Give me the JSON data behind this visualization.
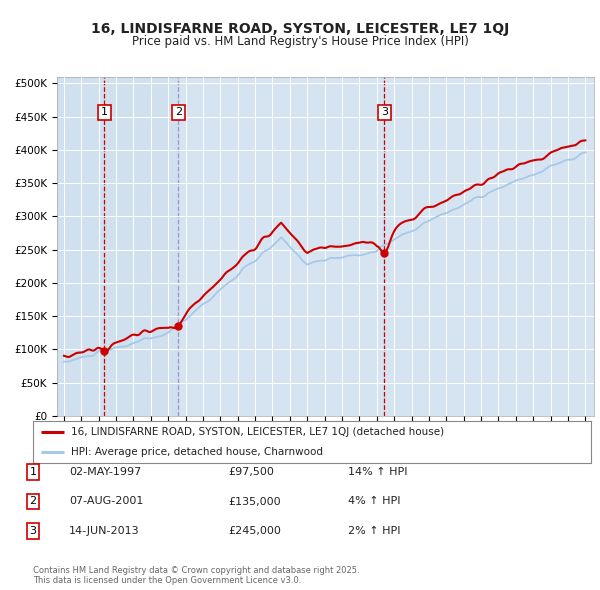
{
  "title_line1": "16, LINDISFARNE ROAD, SYSTON, LEICESTER, LE7 1QJ",
  "title_line2": "Price paid vs. HM Land Registry's House Price Index (HPI)",
  "bg_color": "#dce9f5",
  "grid_color": "#ffffff",
  "red_line_color": "#cc0000",
  "blue_line_color": "#a8c8e8",
  "sale_marker_color": "#cc0000",
  "sales": [
    {
      "date_year": 1997.33,
      "price": 97500,
      "label": "1",
      "hpi_pct": "14%",
      "date_str": "02-MAY-1997"
    },
    {
      "date_year": 2001.58,
      "price": 135000,
      "label": "2",
      "hpi_pct": "4%",
      "date_str": "07-AUG-2001"
    },
    {
      "date_year": 2013.44,
      "price": 245000,
      "label": "3",
      "hpi_pct": "2%",
      "date_str": "14-JUN-2013"
    }
  ],
  "ylim": [
    0,
    510000
  ],
  "xlim": [
    1994.6,
    2025.5
  ],
  "yticks": [
    0,
    50000,
    100000,
    150000,
    200000,
    250000,
    300000,
    350000,
    400000,
    450000,
    500000
  ],
  "ytick_labels": [
    "£0",
    "£50K",
    "£100K",
    "£150K",
    "£200K",
    "£250K",
    "£300K",
    "£350K",
    "£400K",
    "£450K",
    "£500K"
  ],
  "legend_label_red": "16, LINDISFARNE ROAD, SYSTON, LEICESTER, LE7 1QJ (detached house)",
  "legend_label_blue": "HPI: Average price, detached house, Charnwood",
  "footer_text": "Contains HM Land Registry data © Crown copyright and database right 2025.\nThis data is licensed under the Open Government Licence v3.0.",
  "xticks": [
    1995,
    1996,
    1997,
    1998,
    1999,
    2000,
    2001,
    2002,
    2003,
    2004,
    2005,
    2006,
    2007,
    2008,
    2009,
    2010,
    2011,
    2012,
    2013,
    2014,
    2015,
    2016,
    2017,
    2018,
    2019,
    2020,
    2021,
    2022,
    2023,
    2024,
    2025
  ],
  "vline_color_red": "#cc0000",
  "vline_color_blue": "#9999cc",
  "span_color": "#c8d8e8",
  "span_alpha": 0.5
}
